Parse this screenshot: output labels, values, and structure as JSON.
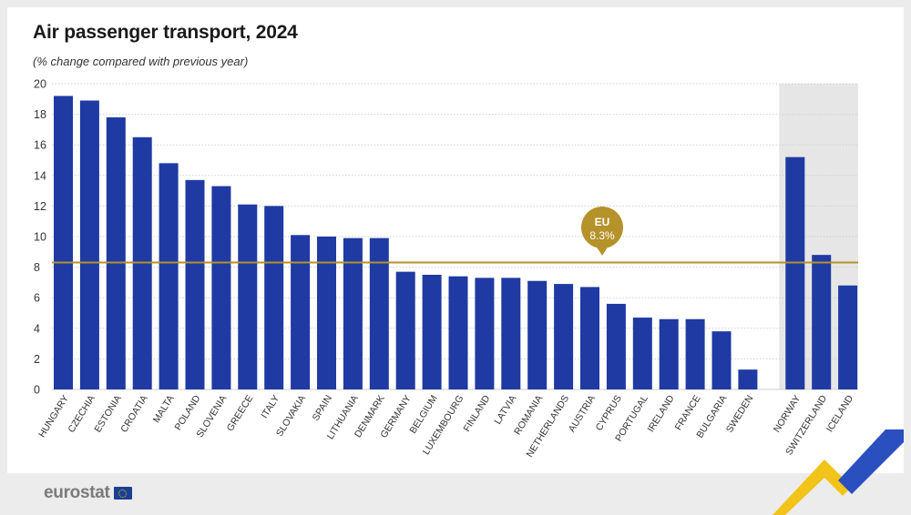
{
  "colors": {
    "bar": "#1f3aa3",
    "eu_line": "#b5922a",
    "grid": "#cfcfcf",
    "non_eu_bg": "#e6e6e6",
    "logo_yellow": "#f2c318",
    "logo_blue": "#2a4fbf"
  },
  "chart_data": {
    "type": "bar",
    "title": "Air passenger transport, 2024",
    "subtitle": "(% change compared with previous year)",
    "ylim": [
      0,
      20
    ],
    "yticks": [
      0,
      2,
      4,
      6,
      8,
      10,
      12,
      14,
      16,
      18,
      20
    ],
    "grid": true,
    "categories": [
      "HUNGARY",
      "CZECHIA",
      "ESTONIA",
      "CROATIA",
      "MALTA",
      "POLAND",
      "SLOVENIA",
      "GREECE",
      "ITALY",
      "SLOVAKIA",
      "SPAIN",
      "LITHUANIA",
      "DENMARK",
      "GERMANY",
      "BELGIUM",
      "LUXEMBOURG",
      "FINLAND",
      "LATVIA",
      "ROMANIA",
      "NETHERLANDS",
      "AUSTRIA",
      "CYPRUS",
      "PORTUGAL",
      "IRELAND",
      "FRANCE",
      "BULGARIA",
      "SWEDEN",
      "NORWAY",
      "SWITZERLAND",
      "ICELAND"
    ],
    "values": [
      19.2,
      18.9,
      17.8,
      16.5,
      14.8,
      13.7,
      13.3,
      12.1,
      12.0,
      10.1,
      10.0,
      9.9,
      9.9,
      7.7,
      7.5,
      7.4,
      7.3,
      7.3,
      7.1,
      6.9,
      6.7,
      5.6,
      4.7,
      4.6,
      4.6,
      3.8,
      1.3,
      15.2,
      8.8,
      6.8
    ],
    "non_eu_categories": [
      "NORWAY",
      "SWITZERLAND",
      "ICELAND"
    ],
    "reference_line": {
      "label": "EU",
      "value_label": "8.3%",
      "value": 8.3
    }
  },
  "footer": {
    "logo_text": "eurostat"
  }
}
